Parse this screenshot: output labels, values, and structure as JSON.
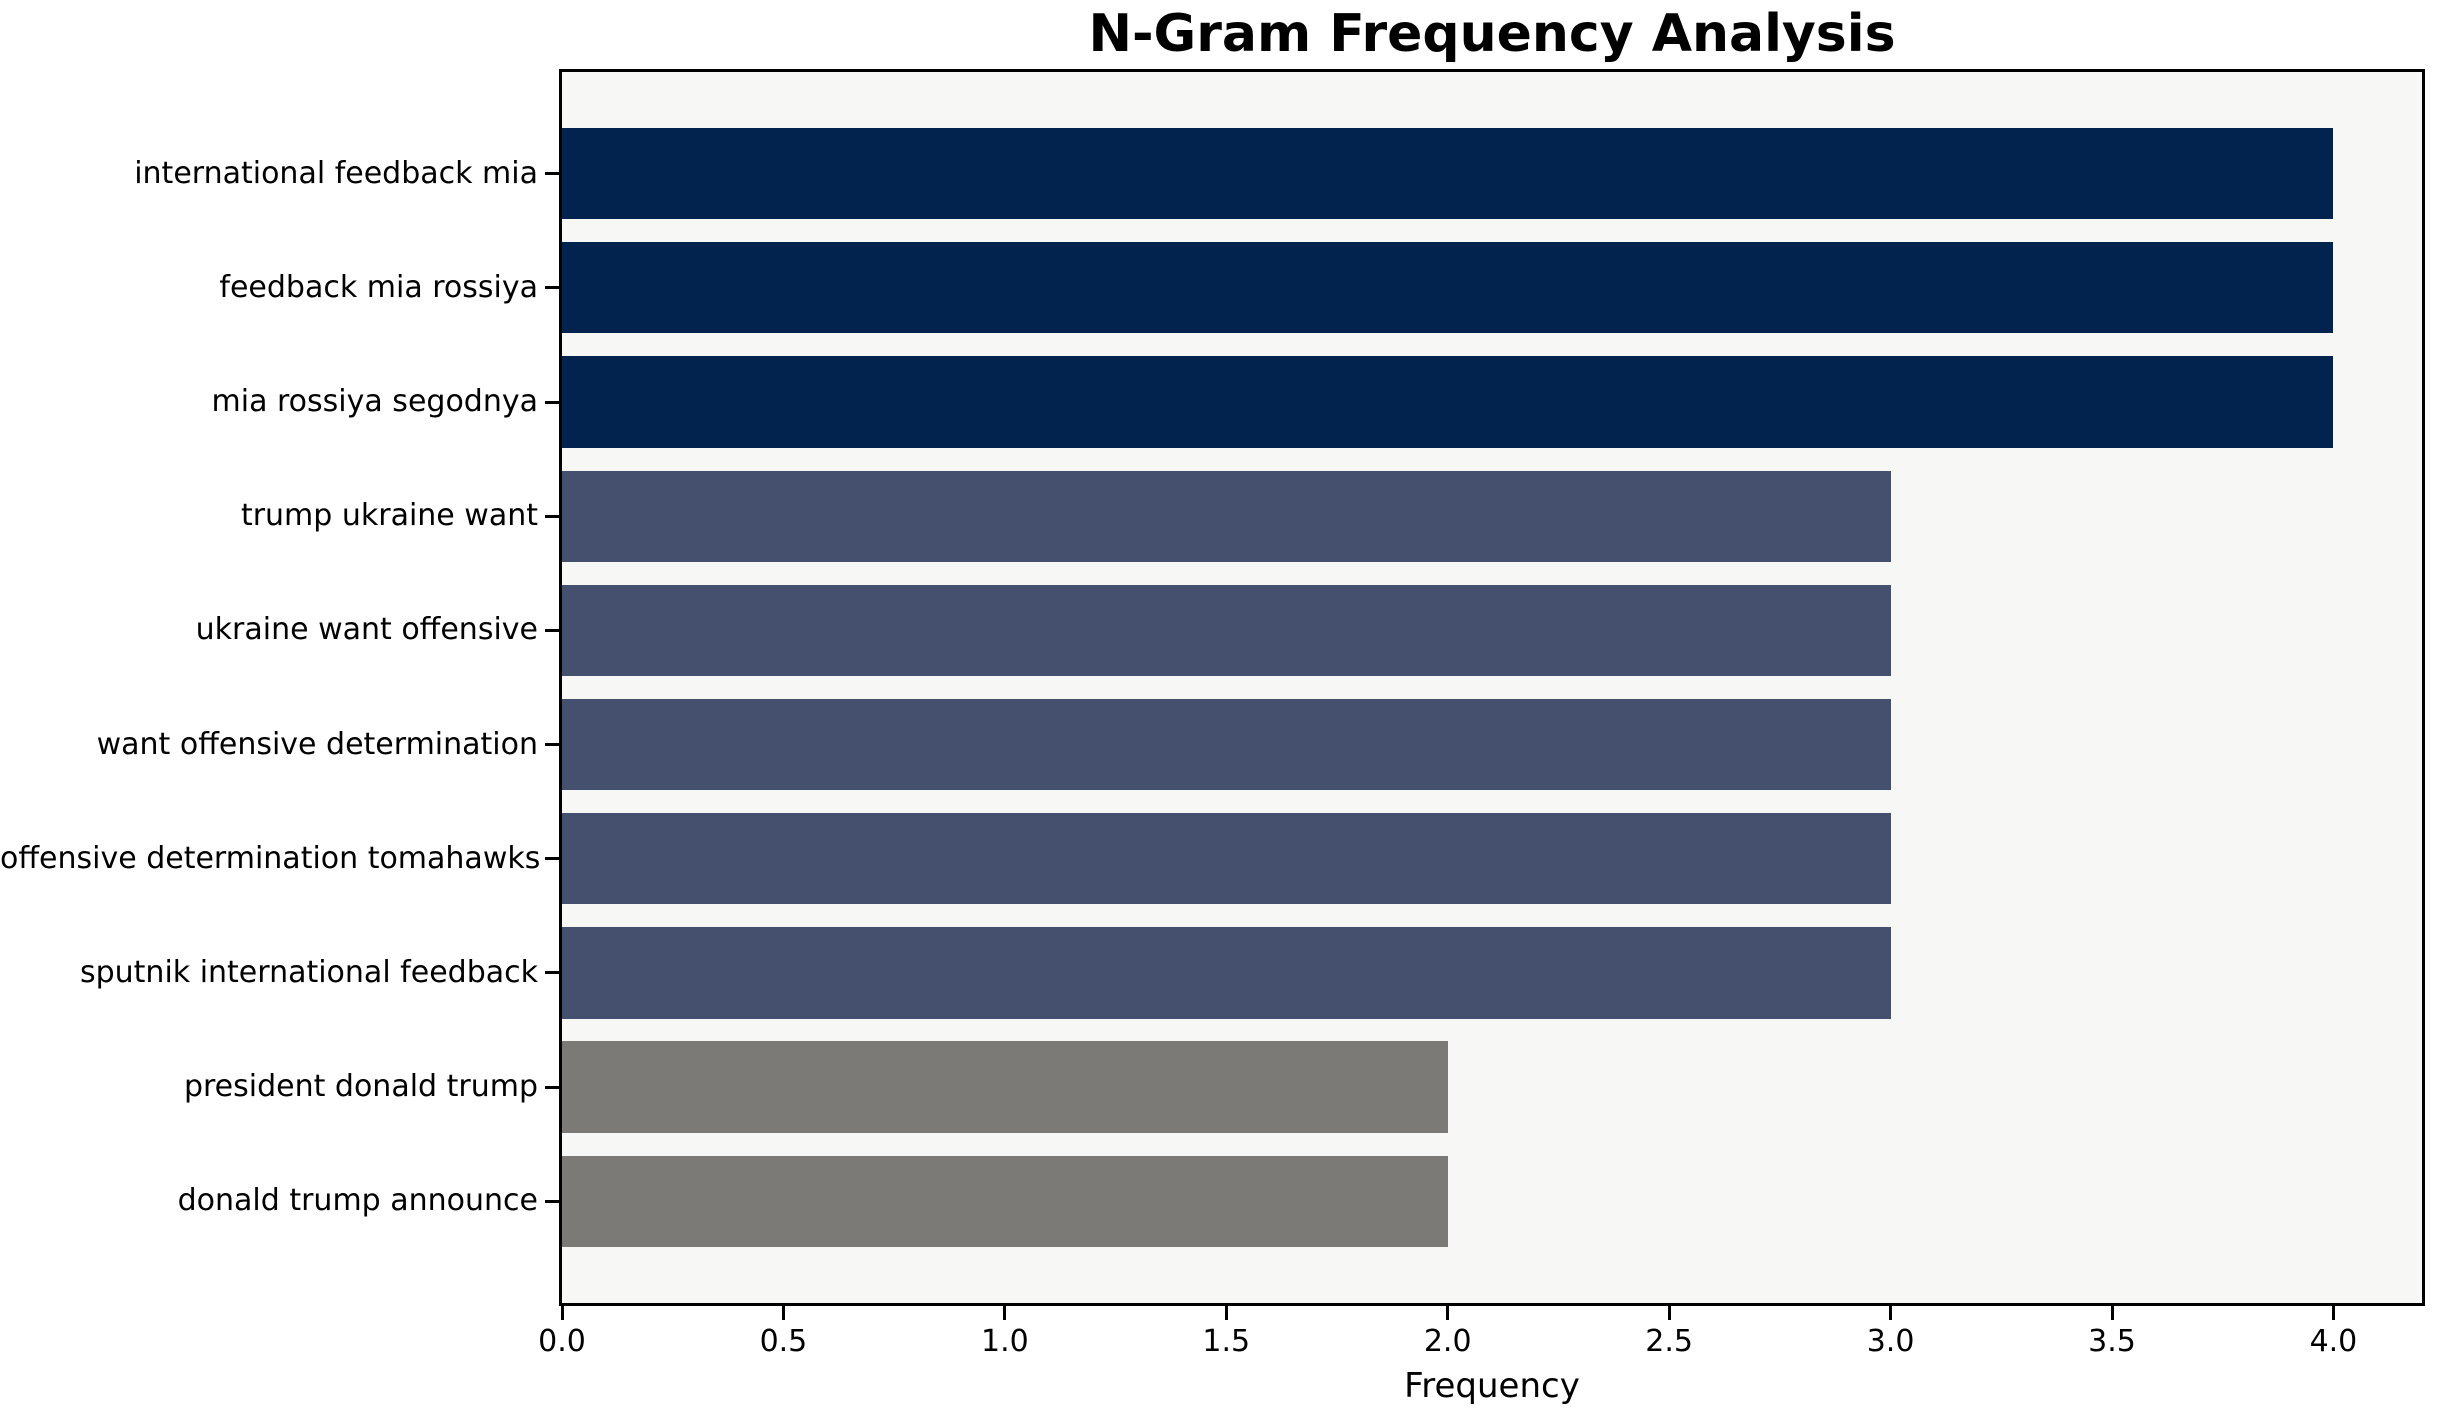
{
  "chart_data": {
    "type": "bar",
    "orientation": "horizontal",
    "title": "N-Gram Frequency Analysis",
    "xlabel": "Frequency",
    "ylabel": "",
    "categories": [
      "international feedback mia",
      "feedback mia rossiya",
      "mia rossiya segodnya",
      "trump ukraine want",
      "ukraine want offensive",
      "want offensive determination",
      "offensive determination tomahawks",
      "sputnik international feedback",
      "president donald trump",
      "donald trump announce"
    ],
    "values": [
      4,
      4,
      4,
      3,
      3,
      3,
      3,
      3,
      2,
      2
    ],
    "bar_colors": [
      "#02234d",
      "#02234d",
      "#02234d",
      "#45506e",
      "#45506e",
      "#45506e",
      "#45506e",
      "#45506e",
      "#7b7a77",
      "#7b7a77"
    ],
    "xlim": [
      0,
      4.2
    ],
    "xticks": [
      0,
      0.5,
      1,
      1.5,
      2,
      2.5,
      3,
      3.5,
      4
    ],
    "xtick_labels": [
      "0.0",
      "0.5",
      "1.0",
      "1.5",
      "2.0",
      "2.5",
      "3.0",
      "3.5",
      "4.0"
    ],
    "grid": false,
    "legend_position": "none",
    "colors": {
      "plot_background": "#f7f7f6",
      "figure_background": "#ffffff",
      "axis": "#000000",
      "text": "#000000"
    }
  }
}
